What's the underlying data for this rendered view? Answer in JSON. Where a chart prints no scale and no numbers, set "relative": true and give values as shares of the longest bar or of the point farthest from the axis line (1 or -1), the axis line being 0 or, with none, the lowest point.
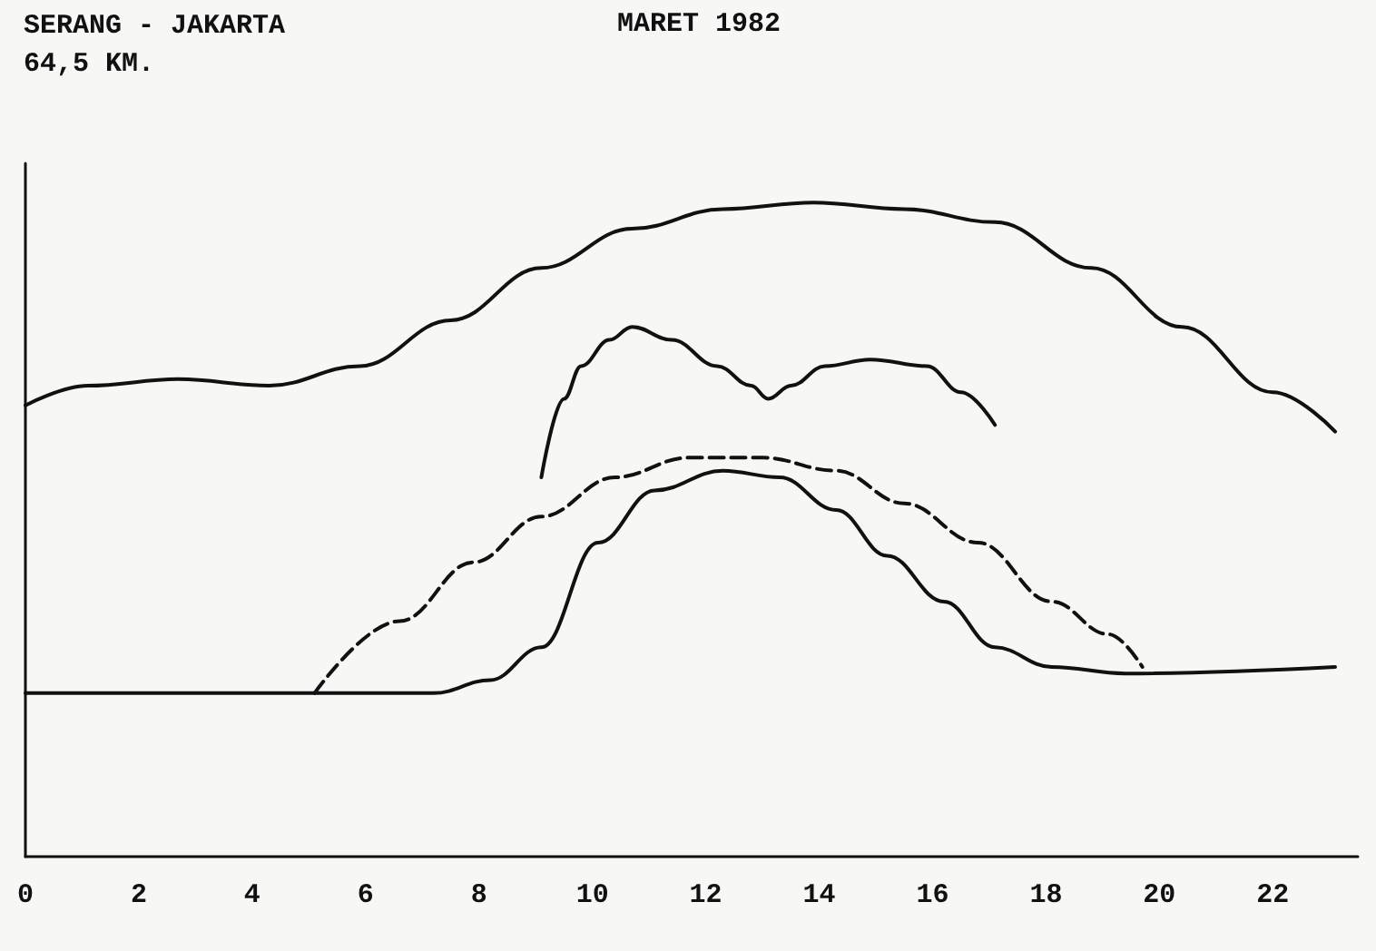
{
  "chart_data": {
    "type": "line",
    "title": "SERANG - JAKARTA",
    "subtitle": "64,5 KM.",
    "annotations": [
      "MARET 1982"
    ],
    "relative": true,
    "marker": "none",
    "grid": false,
    "xlim": [
      0,
      23.5
    ],
    "xticks": [
      0,
      2,
      4,
      6,
      8,
      10,
      12,
      14,
      16,
      18,
      20,
      22
    ],
    "series": [
      {
        "color": "#111111",
        "line_style": "solid",
        "x": [
          0,
          1.1,
          2.7,
          4.3,
          5.9,
          7.5,
          9.1,
          10.7,
          12.3,
          13.9,
          15.5,
          17.1,
          18.8,
          20.4,
          22.0,
          23.1
        ],
        "values": [
          0.69,
          0.72,
          0.73,
          0.72,
          0.75,
          0.82,
          0.9,
          0.96,
          0.99,
          1.0,
          0.99,
          0.97,
          0.9,
          0.81,
          0.71,
          0.65
        ]
      },
      {
        "color": "#111111",
        "line_style": "solid",
        "x": [
          9.1,
          9.5,
          9.8,
          10.3,
          10.7,
          11.4,
          12.2,
          12.8,
          13.1,
          13.5,
          14.1,
          14.9,
          15.9,
          16.5,
          17.1
        ],
        "values": [
          0.58,
          0.7,
          0.75,
          0.79,
          0.81,
          0.79,
          0.75,
          0.72,
          0.7,
          0.72,
          0.75,
          0.76,
          0.75,
          0.71,
          0.66
        ]
      },
      {
        "color": "#111111",
        "line_style": "dashed",
        "x": [
          5.1,
          6.6,
          7.9,
          9.1,
          10.4,
          11.7,
          13.0,
          14.3,
          15.5,
          16.8,
          18.1,
          19.1,
          19.7
        ],
        "values": [
          0.25,
          0.36,
          0.45,
          0.52,
          0.58,
          0.61,
          0.61,
          0.59,
          0.54,
          0.48,
          0.39,
          0.34,
          0.29
        ]
      },
      {
        "color": "#111111",
        "line_style": "solid",
        "x": [
          0,
          7.2,
          8.2,
          9.1,
          10.1,
          11.1,
          12.3,
          13.3,
          14.3,
          15.2,
          16.2,
          17.1,
          18.1,
          19.4,
          23.1
        ],
        "values": [
          0.25,
          0.25,
          0.27,
          0.32,
          0.48,
          0.56,
          0.59,
          0.58,
          0.53,
          0.46,
          0.39,
          0.32,
          0.29,
          0.28,
          0.29
        ]
      }
    ]
  }
}
